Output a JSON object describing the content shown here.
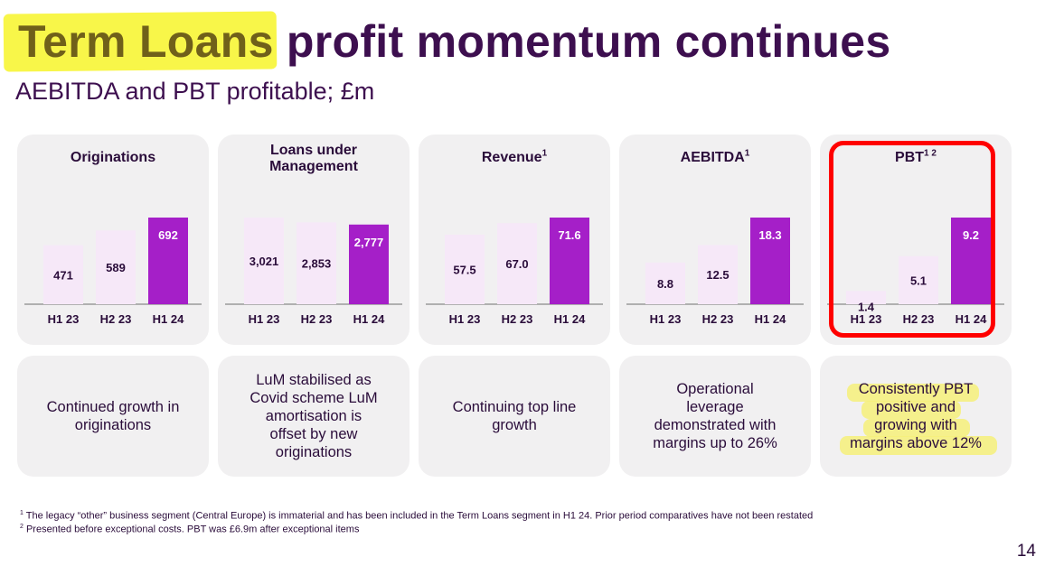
{
  "title": {
    "highlighted": "Term Loans",
    "rest": " profit momentum continues"
  },
  "subtitle": "AEBITDA and PBT profitable; £m",
  "chart_data": [
    {
      "type": "bar",
      "title": "Originations",
      "title_sup": "",
      "categories": [
        "H1 23",
        "H2 23",
        "H1 24"
      ],
      "values": [
        471,
        589,
        692
      ],
      "labels": [
        "471",
        "589",
        "692"
      ],
      "ylim": [
        0,
        692
      ],
      "colors": [
        "#f6e8f8",
        "#f6e8f8",
        "#a51fc8"
      ]
    },
    {
      "type": "bar",
      "title": "Loans under\nManagement",
      "title_sup": "",
      "categories": [
        "H1 23",
        "H2 23",
        "H1 24"
      ],
      "values": [
        3021,
        2853,
        2777
      ],
      "labels": [
        "3,021",
        "2,853",
        "2,777"
      ],
      "ylim": [
        0,
        3021
      ],
      "colors": [
        "#f6e8f8",
        "#f6e8f8",
        "#a51fc8"
      ]
    },
    {
      "type": "bar",
      "title": "Revenue",
      "title_sup": "1",
      "categories": [
        "H1 23",
        "H2 23",
        "H1 24"
      ],
      "values": [
        57.5,
        67.0,
        71.6
      ],
      "labels": [
        "57.5",
        "67.0",
        "71.6"
      ],
      "ylim": [
        0,
        71.6
      ],
      "colors": [
        "#f6e8f8",
        "#f6e8f8",
        "#a51fc8"
      ]
    },
    {
      "type": "bar",
      "title": "AEBITDA",
      "title_sup": "1",
      "categories": [
        "H1 23",
        "H2 23",
        "H1 24"
      ],
      "values": [
        8.8,
        12.5,
        18.3
      ],
      "labels": [
        "8.8",
        "12.5",
        "18.3"
      ],
      "ylim": [
        0,
        18.3
      ],
      "colors": [
        "#f6e8f8",
        "#f6e8f8",
        "#a51fc8"
      ]
    },
    {
      "type": "bar",
      "title": "PBT",
      "title_sup": "1 2",
      "categories": [
        "H1 23",
        "H2 23",
        "H1 24"
      ],
      "values": [
        1.4,
        5.1,
        9.2
      ],
      "labels": [
        "1.4",
        "5.1",
        "9.2"
      ],
      "ylim": [
        0,
        9.2
      ],
      "colors": [
        "#f6e8f8",
        "#f6e8f8",
        "#a51fc8"
      ]
    }
  ],
  "notes": [
    "Continued growth in\noriginations",
    "LuM stabilised as\nCovid scheme LuM\namortisation is\noffset by new\noriginations",
    "Continuing top line\ngrowth",
    "Operational\nleverage\ndemonstrated with\nmargins up to 26%",
    "Consistently PBT\npositive and\ngrowing with\nmargins above 12%"
  ],
  "footnotes": [
    {
      "sup": "1",
      "text": " The legacy “other” business segment (Central Europe) is immaterial and has been included in the Term Loans segment in H1 24. Prior period comparatives have not been restated"
    },
    {
      "sup": "2",
      "text": " Presented before exceptional costs. PBT was £6.9m after exceptional items"
    }
  ],
  "page_number": "14",
  "colors": {
    "accent_purple": "#a51fc8",
    "light_bar": "#f6e8f8",
    "panel_bg": "#f1f0f1",
    "highlight": "#f7f429",
    "annotation_red": "#ff0000"
  }
}
